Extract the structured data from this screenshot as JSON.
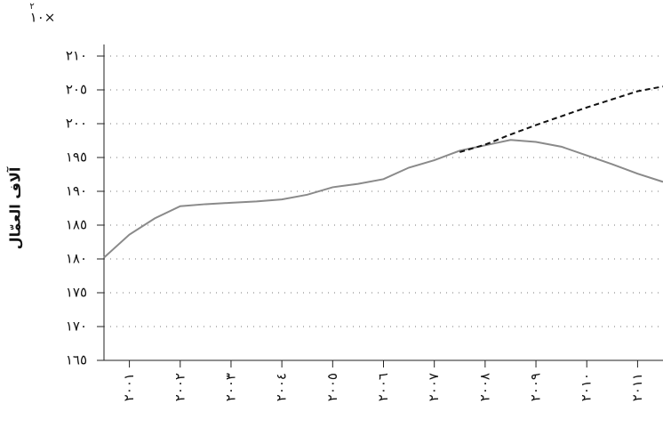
{
  "chart_data": {
    "type": "line",
    "y_label": "آلاف العمّال",
    "multiplier": {
      "base": "١٠×",
      "exponent": "٢"
    },
    "x": [
      2000.5,
      2001,
      2001.5,
      2002,
      2002.5,
      2003,
      2003.5,
      2004,
      2004.5,
      2005,
      2005.5,
      2006,
      2006.5,
      2007,
      2007.5,
      2008,
      2008.5,
      2009,
      2009.5,
      2010,
      2010.5,
      2011,
      2011.5
    ],
    "series": [
      {
        "color": "#8a8a8a",
        "style": "solid",
        "values": [
          180.2,
          183.6,
          186.0,
          187.8,
          188.1,
          188.3,
          188.5,
          188.8,
          189.5,
          190.6,
          191.1,
          191.8,
          193.5,
          194.6,
          196.0,
          196.8,
          197.6,
          197.3,
          196.6,
          195.3,
          194.0,
          192.6,
          191.4
        ]
      },
      {
        "color": "#111111",
        "style": "dashed",
        "values": [
          null,
          null,
          null,
          null,
          null,
          null,
          null,
          null,
          null,
          null,
          null,
          null,
          null,
          null,
          195.8,
          196.9,
          198.4,
          199.8,
          201.1,
          202.4,
          203.6,
          204.8,
          205.5
        ]
      }
    ],
    "xlim": [
      2000.5,
      2011.5
    ],
    "xticks": [
      {
        "value": 2001,
        "label": "٢٠٠١"
      },
      {
        "value": 2002,
        "label": "٢٠٠٢"
      },
      {
        "value": 2003,
        "label": "٢٠٠٣"
      },
      {
        "value": 2004,
        "label": "٢٠٠٤"
      },
      {
        "value": 2005,
        "label": "٢٠٠٥"
      },
      {
        "value": 2006,
        "label": "٢٠٠٦"
      },
      {
        "value": 2007,
        "label": "٢٠٠٧"
      },
      {
        "value": 2008,
        "label": "٢٠٠٨"
      },
      {
        "value": 2009,
        "label": "٢٠٠٩"
      },
      {
        "value": 2010,
        "label": "٢٠١٠"
      },
      {
        "value": 2011,
        "label": "٢٠١١"
      }
    ],
    "ylim": [
      165,
      210
    ],
    "yticks": [
      {
        "value": 165,
        "label": "١٦٥"
      },
      {
        "value": 170,
        "label": "١٧٠"
      },
      {
        "value": 175,
        "label": "١٧٥"
      },
      {
        "value": 180,
        "label": "١٨٠"
      },
      {
        "value": 185,
        "label": "١٨٥"
      },
      {
        "value": 190,
        "label": "١٩٠"
      },
      {
        "value": 195,
        "label": "١٩٥"
      },
      {
        "value": 200,
        "label": "٢٠٠"
      },
      {
        "value": 205,
        "label": "٢٠٥"
      },
      {
        "value": 210,
        "label": "٢١٠"
      }
    ],
    "grid": true
  }
}
